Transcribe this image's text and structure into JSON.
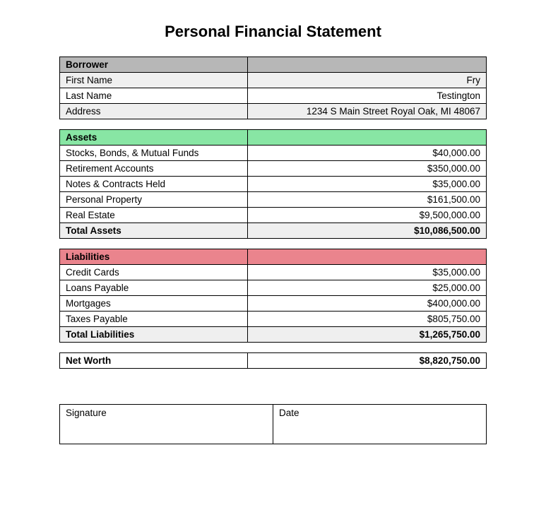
{
  "title": "Personal Financial Statement",
  "borrower": {
    "header": "Borrower",
    "firstNameLabel": "First Name",
    "firstName": "Fry",
    "lastNameLabel": "Last Name",
    "lastName": "Testington",
    "addressLabel": "Address",
    "address": "1234 S Main Street Royal Oak, MI 48067"
  },
  "assets": {
    "header": "Assets",
    "rows": [
      {
        "label": "Stocks, Bonds, & Mutual Funds",
        "value": "$40,000.00"
      },
      {
        "label": "Retirement Accounts",
        "value": "$350,000.00"
      },
      {
        "label": "Notes & Contracts Held",
        "value": "$35,000.00"
      },
      {
        "label": "Personal Property",
        "value": "$161,500.00"
      },
      {
        "label": "Real Estate",
        "value": "$9,500,000.00"
      }
    ],
    "totalLabel": "Total Assets",
    "totalValue": "$10,086,500.00"
  },
  "liabilities": {
    "header": "Liabilities",
    "rows": [
      {
        "label": "Credit Cards",
        "value": "$35,000.00"
      },
      {
        "label": "Loans Payable",
        "value": "$25,000.00"
      },
      {
        "label": "Mortgages",
        "value": "$400,000.00"
      },
      {
        "label": "Taxes Payable",
        "value": "$805,750.00"
      }
    ],
    "totalLabel": "Total Liabilities",
    "totalValue": "$1,265,750.00"
  },
  "netWorth": {
    "label": "Net Worth",
    "value": "$8,820,750.00"
  },
  "signature": {
    "sigLabel": "Signature",
    "dateLabel": "Date"
  },
  "colors": {
    "header_grey": "#b7b7b7",
    "header_green": "#88e6a4",
    "header_red": "#ea848d",
    "row_light": "#efefef",
    "border": "#000000",
    "background": "#ffffff"
  }
}
